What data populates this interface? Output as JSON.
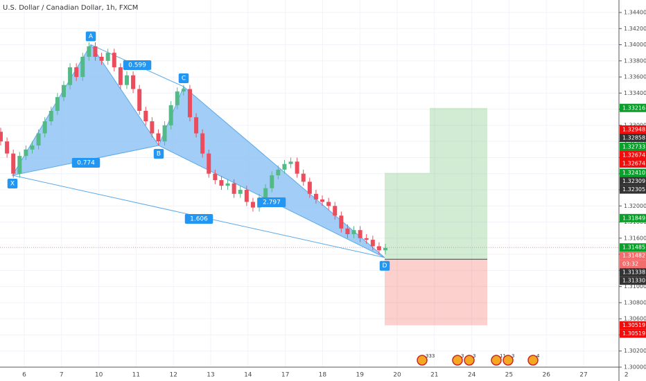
{
  "chart_data": {
    "type": "candlestick",
    "title": "U.S. Dollar / Canadian Dollar, 1h, FXCM",
    "categories": [
      "6",
      "7",
      "10",
      "11",
      "12",
      "13",
      "14",
      "17",
      "18",
      "19",
      "20",
      "21",
      "24",
      "25",
      "26",
      "27",
      "2"
    ],
    "ylim": [
      1.3,
      1.344
    ],
    "yticks": [
      {
        "value": 1.3,
        "label": "1.30000"
      },
      {
        "value": 1.302,
        "label": "1.30200"
      },
      {
        "value": 1.304,
        "label": "1.30400"
      },
      {
        "value": 1.306,
        "label": "1.30600"
      },
      {
        "value": 1.308,
        "label": "1.30800"
      },
      {
        "value": 1.31,
        "label": "1.31000"
      },
      {
        "value": 1.312,
        "label": "1.31200"
      },
      {
        "value": 1.314,
        "label": "1.31400"
      },
      {
        "value": 1.316,
        "label": "1.31600"
      },
      {
        "value": 1.318,
        "label": "1.31800"
      },
      {
        "value": 1.32,
        "label": "1.32000"
      },
      {
        "value": 1.322,
        "label": "1.32200"
      },
      {
        "value": 1.324,
        "label": "1.32400"
      },
      {
        "value": 1.326,
        "label": "1.32600"
      },
      {
        "value": 1.328,
        "label": "1.32800"
      },
      {
        "value": 1.33,
        "label": "1.33000"
      },
      {
        "value": 1.332,
        "label": "1.33200"
      },
      {
        "value": 1.334,
        "label": "1.33400"
      },
      {
        "value": 1.336,
        "label": "1.33600"
      },
      {
        "value": 1.338,
        "label": "1.33800"
      },
      {
        "value": 1.34,
        "label": "1.34000"
      },
      {
        "value": 1.342,
        "label": "1.34200"
      },
      {
        "value": 1.344,
        "label": "1.34400"
      }
    ],
    "grid": true,
    "up_color": "#53b987",
    "down_color": "#eb4d5c",
    "open": [
      1.3292,
      1.328,
      1.3265,
      1.324,
      1.3262,
      1.327,
      1.3275,
      1.329,
      1.3305,
      1.3318,
      1.3335,
      1.335,
      1.3372,
      1.336,
      1.3385,
      1.3398,
      1.3385,
      1.338,
      1.339,
      1.3372,
      1.335,
      1.3362,
      1.3345,
      1.3318,
      1.3305,
      1.329,
      1.328,
      1.33,
      1.3325,
      1.3342,
      1.3345,
      1.331,
      1.329,
      1.3265,
      1.324,
      1.3232,
      1.3225,
      1.3228,
      1.3215,
      1.322,
      1.3205,
      1.3198,
      1.321,
      1.3222,
      1.3238,
      1.3245,
      1.3252,
      1.3255,
      1.324,
      1.323,
      1.3215,
      1.3208,
      1.3205,
      1.32,
      1.3188,
      1.3172,
      1.3165,
      1.317,
      1.316,
      1.3158,
      1.315,
      1.3145
    ],
    "high": [
      1.3297,
      1.3285,
      1.327,
      1.3267,
      1.3275,
      1.328,
      1.3295,
      1.331,
      1.3323,
      1.334,
      1.3355,
      1.3377,
      1.3377,
      1.339,
      1.3403,
      1.3403,
      1.339,
      1.3395,
      1.3395,
      1.3377,
      1.3367,
      1.3367,
      1.335,
      1.3323,
      1.331,
      1.3295,
      1.3305,
      1.333,
      1.3347,
      1.335,
      1.335,
      1.3315,
      1.3295,
      1.327,
      1.3245,
      1.3237,
      1.3233,
      1.3233,
      1.3225,
      1.3225,
      1.321,
      1.3215,
      1.3227,
      1.3243,
      1.325,
      1.3257,
      1.326,
      1.326,
      1.3245,
      1.3235,
      1.322,
      1.3213,
      1.321,
      1.3205,
      1.3193,
      1.3177,
      1.3175,
      1.3175,
      1.3165,
      1.3163,
      1.3155,
      1.3153
    ],
    "low": [
      1.3275,
      1.326,
      1.3235,
      1.3235,
      1.3257,
      1.3265,
      1.327,
      1.3285,
      1.33,
      1.3313,
      1.333,
      1.3345,
      1.3355,
      1.3355,
      1.338,
      1.338,
      1.3375,
      1.3375,
      1.3367,
      1.3345,
      1.3345,
      1.334,
      1.3313,
      1.33,
      1.3285,
      1.3275,
      1.3275,
      1.3295,
      1.332,
      1.3337,
      1.3305,
      1.3285,
      1.326,
      1.3235,
      1.3227,
      1.322,
      1.322,
      1.321,
      1.321,
      1.32,
      1.3193,
      1.3193,
      1.3205,
      1.3217,
      1.3233,
      1.324,
      1.3247,
      1.3235,
      1.3225,
      1.321,
      1.3203,
      1.32,
      1.3195,
      1.3183,
      1.3167,
      1.316,
      1.316,
      1.3155,
      1.3153,
      1.3145,
      1.314,
      1.314
    ],
    "close": [
      1.328,
      1.3265,
      1.324,
      1.3262,
      1.327,
      1.3275,
      1.329,
      1.3305,
      1.3318,
      1.3335,
      1.335,
      1.3372,
      1.336,
      1.3385,
      1.3398,
      1.3385,
      1.338,
      1.339,
      1.3372,
      1.335,
      1.3362,
      1.3345,
      1.3318,
      1.3305,
      1.329,
      1.328,
      1.33,
      1.3325,
      1.3342,
      1.3345,
      1.331,
      1.329,
      1.3265,
      1.324,
      1.3232,
      1.3225,
      1.3228,
      1.3215,
      1.322,
      1.3205,
      1.3198,
      1.321,
      1.3222,
      1.3238,
      1.3245,
      1.3252,
      1.3255,
      1.324,
      1.323,
      1.3215,
      1.3208,
      1.3205,
      1.32,
      1.3188,
      1.3172,
      1.3165,
      1.317,
      1.316,
      1.3158,
      1.315,
      1.3145,
      1.3148
    ],
    "pattern": {
      "color": "#90c4f4",
      "points": [
        {
          "label": "X",
          "price": 1.3238
        },
        {
          "label": "A",
          "price": 1.34
        },
        {
          "label": "B",
          "price": 1.3275
        },
        {
          "label": "C",
          "price": 1.3348
        },
        {
          "label": "D",
          "price": 1.3136
        }
      ],
      "ratios": [
        "0.599",
        "0.774",
        "2.797",
        "1.606"
      ]
    },
    "position": {
      "entry": 1.31338,
      "stop": 1.30519,
      "target1": 1.3241,
      "target2": 1.33216
    },
    "last_price": 1.31485,
    "axis_badges": [
      {
        "value": 1.33216,
        "label": "1.33216",
        "color": "#0a9e2a"
      },
      {
        "value": 1.32948,
        "label": "1.32948",
        "color": "#f20d0d"
      },
      {
        "value": 1.32858,
        "label": "1.32858",
        "color": "#333333"
      },
      {
        "value": 1.32733,
        "label": "1.32733",
        "color": "#0a9e2a"
      },
      {
        "value": 1.32674,
        "label": "1.32674",
        "color": "#f20d0d"
      },
      {
        "value": 1.32674,
        "label": "1.32674",
        "color": "#f20d0d"
      },
      {
        "value": 1.3241,
        "label": "1.32410",
        "color": "#0a9e2a"
      },
      {
        "value": 1.32309,
        "label": "1.32309",
        "color": "#333333"
      },
      {
        "value": 1.32305,
        "label": "1.32305",
        "color": "#333333"
      },
      {
        "value": 1.31849,
        "label": "1.31849",
        "color": "#0a9e2a"
      },
      {
        "value": 1.31485,
        "label": "1.31485",
        "color": "#0a9e2a"
      },
      {
        "value": 1.31482,
        "label": "1.31482",
        "color": "#f26d6d"
      },
      {
        "label": "03:32",
        "color": "#f26d6d"
      },
      {
        "value": 1.31338,
        "label": "1.31338",
        "color": "#333333"
      },
      {
        "value": 1.3133,
        "label": "1.31330",
        "color": "#333333"
      },
      {
        "value": 1.30519,
        "label": "1.30519",
        "color": "#f20d0d"
      },
      {
        "value": 1.30519,
        "label": "1.30519",
        "color": "#f20d0d"
      }
    ],
    "events": [
      "333",
      "3",
      "3",
      "11",
      "3",
      "4"
    ]
  }
}
